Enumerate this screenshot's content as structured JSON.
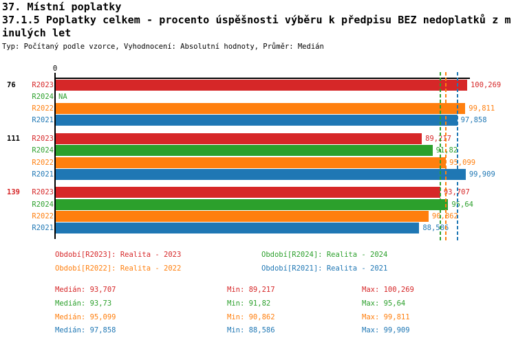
{
  "header": {
    "title_line1": "37. Místní poplatky",
    "title_line2": "37.1.5 Poplatky celkem - procento úspěšnosti výběru k předpisu BEZ nedoplatků z m",
    "title_line3": "inulých let",
    "subtitle": "Typ: Počítaný podle vzorce, Vyhodnocení: Absolutní hodnoty, Průměr: Medián"
  },
  "colors": {
    "R2023": "#d62728",
    "R2024": "#2ca02c",
    "R2022": "#ff7f0e",
    "R2021": "#1f77b4",
    "axis": "#000000",
    "group_label_highlight": "#d62728"
  },
  "chart_data": {
    "type": "bar",
    "orientation": "horizontal",
    "title": "37.1.5 Poplatky celkem - procento úspěšnosti výběru k předpisu BEZ nedoplatků z minulých let",
    "value_axis": {
      "origin_label": "0",
      "min": 0,
      "max_rendered": 100.269,
      "unit": "procento"
    },
    "series_order": [
      "R2023",
      "R2024",
      "R2022",
      "R2021"
    ],
    "groups": [
      {
        "label": "76",
        "label_color": "#000000",
        "bars": [
          {
            "series": "R2023",
            "value": 100.269,
            "label": "100,269"
          },
          {
            "series": "R2024",
            "value": null,
            "label": "NA"
          },
          {
            "series": "R2022",
            "value": 99.811,
            "label": "99,811"
          },
          {
            "series": "R2021",
            "value": 97.858,
            "label": "97,858"
          }
        ]
      },
      {
        "label": "111",
        "label_color": "#000000",
        "bars": [
          {
            "series": "R2023",
            "value": 89.217,
            "label": "89,217"
          },
          {
            "series": "R2024",
            "value": 91.82,
            "label": "91,82"
          },
          {
            "series": "R2022",
            "value": 95.099,
            "label": "95,099"
          },
          {
            "series": "R2021",
            "value": 99.909,
            "label": "99,909"
          }
        ]
      },
      {
        "label": "139",
        "label_color": "#d62728",
        "bars": [
          {
            "series": "R2023",
            "value": 93.707,
            "label": "93,707"
          },
          {
            "series": "R2024",
            "value": 95.64,
            "label": "95,64"
          },
          {
            "series": "R2022",
            "value": 90.862,
            "label": "90,862"
          },
          {
            "series": "R2021",
            "value": 88.586,
            "label": "88,586"
          }
        ]
      }
    ],
    "reference_lines": [
      {
        "series": "R2023",
        "value": 93.707
      },
      {
        "series": "R2024",
        "value": 93.73
      },
      {
        "series": "R2022",
        "value": 95.099
      },
      {
        "series": "R2021",
        "value": 97.858
      }
    ],
    "legend": [
      {
        "series": "R2023",
        "label": "Období[R2023]: Realita - 2023"
      },
      {
        "series": "R2024",
        "label": "Období[R2024]: Realita - 2024"
      },
      {
        "series": "R2022",
        "label": "Období[R2022]: Realita - 2022"
      },
      {
        "series": "R2021",
        "label": "Období[R2021]: Realita - 2021"
      }
    ],
    "stats": [
      {
        "series": "R2023",
        "median": 93.707,
        "min": 89.217,
        "max": 100.269,
        "median_text": "Medián: 93,707",
        "min_text": "Min: 89,217",
        "max_text": "Max: 100,269"
      },
      {
        "series": "R2024",
        "median": 93.73,
        "min": 91.82,
        "max": 95.64,
        "median_text": "Medián: 93,73",
        "min_text": "Min: 91,82",
        "max_text": "Max: 95,64"
      },
      {
        "series": "R2022",
        "median": 95.099,
        "min": 90.862,
        "max": 99.811,
        "median_text": "Medián: 95,099",
        "min_text": "Min: 90,862",
        "max_text": "Max: 99,811"
      },
      {
        "series": "R2021",
        "median": 97.858,
        "min": 88.586,
        "max": 99.909,
        "median_text": "Medián: 97,858",
        "min_text": "Min: 88,586",
        "max_text": "Max: 99,909"
      }
    ]
  }
}
